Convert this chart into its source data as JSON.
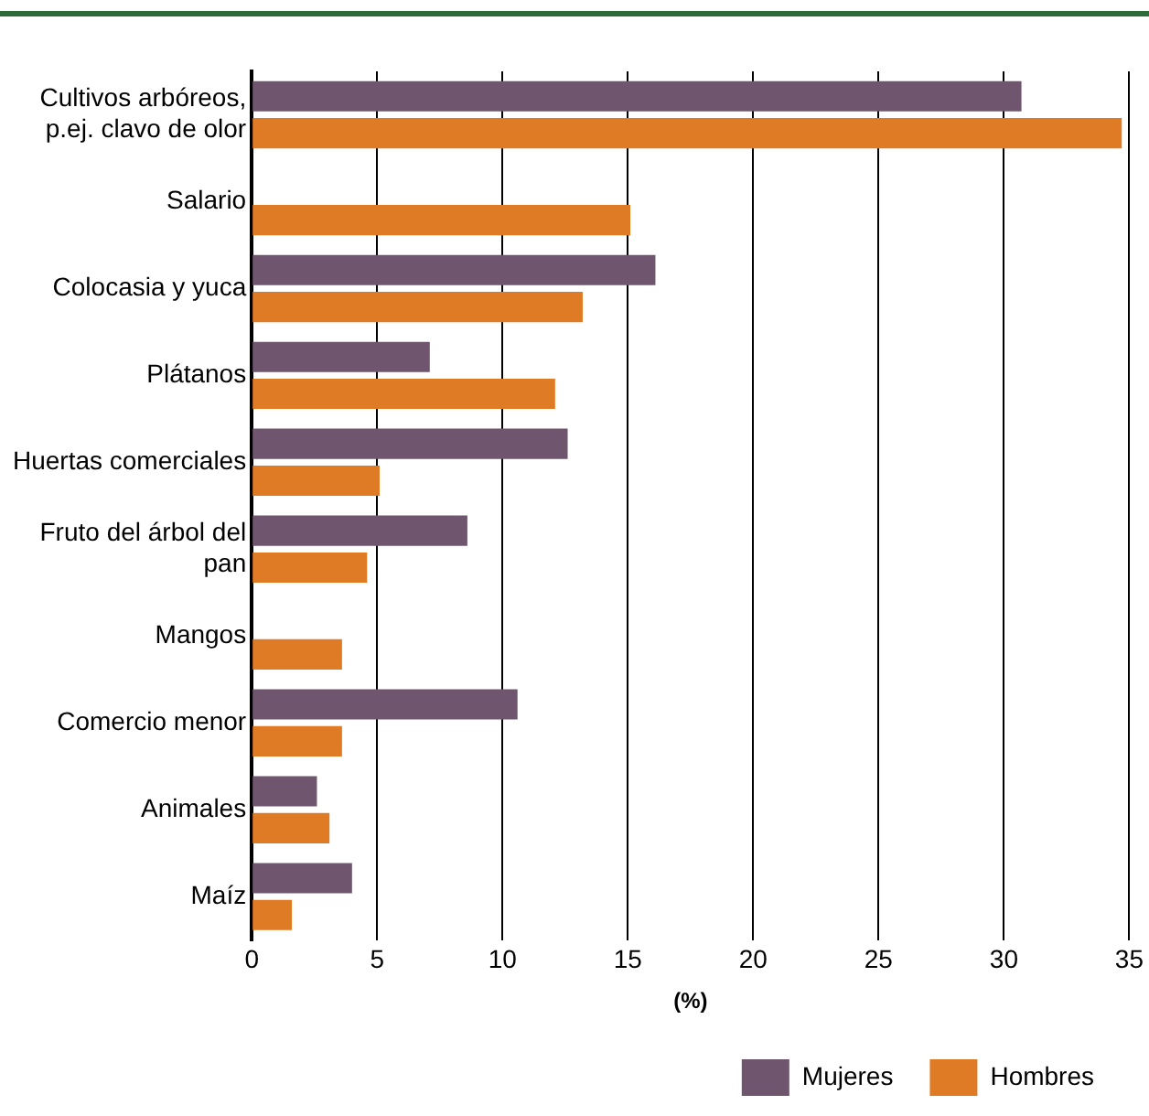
{
  "chart_data": {
    "type": "bar",
    "orientation": "horizontal",
    "xlabel": "(%)",
    "categories": [
      "Cultivos arbóreos, p.ej. clavo de olor",
      "Salario",
      "Colocasia y yuca",
      "Plátanos",
      "Huertas comerciales",
      "Fruto del árbol del pan",
      "Mangos",
      "Comercio menor",
      "Animales",
      "Maíz"
    ],
    "series": [
      {
        "name": "Mujeres",
        "color": "#6f566e",
        "values": [
          30.7,
          null,
          16.1,
          7.1,
          12.6,
          8.6,
          null,
          10.6,
          2.6,
          4.0
        ]
      },
      {
        "name": "Hombres",
        "color": "#e07b25",
        "values": [
          34.7,
          15.1,
          13.2,
          12.1,
          5.1,
          4.6,
          3.6,
          3.6,
          3.1,
          1.6
        ]
      }
    ],
    "xlim": [
      0,
      35
    ],
    "xticks": [
      0,
      5,
      10,
      15,
      20,
      25,
      30,
      35
    ],
    "grid": "x",
    "legend": "bottom"
  }
}
